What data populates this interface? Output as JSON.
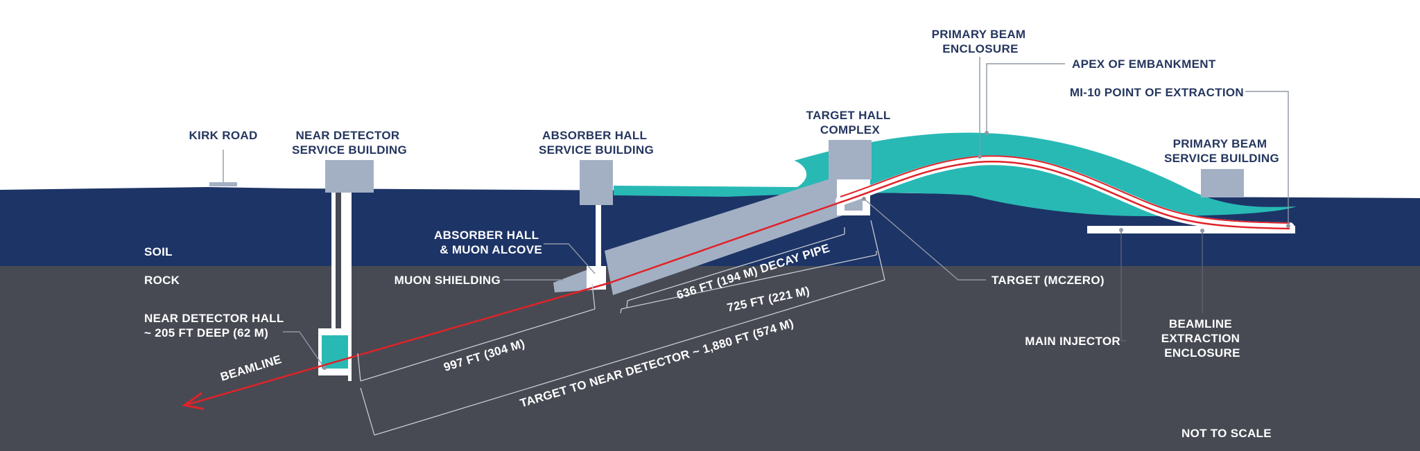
{
  "labels": {
    "kirk_road": "KIRK ROAD",
    "near_detector_service_building": [
      "NEAR DETECTOR",
      "SERVICE BUILDING"
    ],
    "absorber_hall_service_building": [
      "ABSORBER HALL",
      "SERVICE BUILDING"
    ],
    "target_hall_complex": [
      "TARGET HALL",
      "COMPLEX"
    ],
    "primary_beam_enclosure": [
      "PRIMARY BEAM",
      "ENCLOSURE"
    ],
    "apex_of_embankment": "APEX OF EMBANKMENT",
    "mi10_point_of_extraction": "MI-10 POINT OF EXTRACTION",
    "primary_beam_service_building": [
      "PRIMARY BEAM",
      "SERVICE BUILDING"
    ],
    "soil": "SOIL",
    "rock": "ROCK",
    "absorber_hall_muon_alcove": [
      "ABSORBER HALL",
      "& MUON ALCOVE"
    ],
    "muon_shielding": "MUON SHIELDING",
    "near_detector_hall": [
      "NEAR DETECTOR HALL",
      "~ 205 FT DEEP (62 M)"
    ],
    "beamline": "BEAMLINE",
    "target_mczero": "TARGET (MCZERO)",
    "main_injector": "MAIN INJECTOR",
    "beamline_extraction_enclosure": [
      "BEAMLINE",
      "EXTRACTION",
      "ENCLOSURE"
    ],
    "not_to_scale": "NOT TO SCALE"
  },
  "dimensions": {
    "decay_pipe": "636 FT (194 M) DECAY PIPE",
    "target_to_absorber": "725 FT (221 M)",
    "absorber_to_near_detector": "997 FT (304 M)",
    "target_to_near_detector": "TARGET TO NEAR DETECTOR ~ 1,880 FT (574 M)"
  },
  "colors": {
    "sky": "#ffffff",
    "soil": "#1d3466",
    "rock": "#474a53",
    "embankment": "#28b9b5",
    "structure": "#a3b0c4",
    "beam": "#e02228",
    "label_dark": "#25365f",
    "label_light": "#ffffff"
  }
}
